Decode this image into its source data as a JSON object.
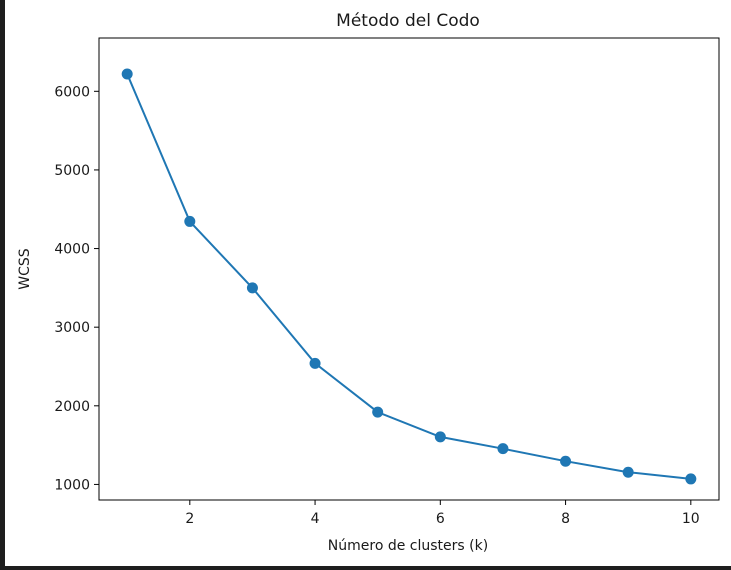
{
  "chart_data": {
    "type": "line",
    "title": "Método del Codo",
    "xlabel": "Número de clusters (k)",
    "ylabel": "WCSS",
    "x": [
      1,
      2,
      3,
      4,
      5,
      6,
      7,
      8,
      9,
      10
    ],
    "series": [
      {
        "values": [
          6220,
          4345,
          3500,
          2540,
          1920,
          1605,
          1455,
          1295,
          1155,
          1070
        ]
      }
    ],
    "xticks": [
      2,
      4,
      6,
      8,
      10
    ],
    "yticks": [
      1000,
      2000,
      3000,
      4000,
      5000,
      6000
    ],
    "xlim": [
      0.55,
      10.45
    ],
    "ylim": [
      802,
      6678
    ],
    "grid": false,
    "marker": "circle",
    "line_color": "#1f77b4"
  }
}
